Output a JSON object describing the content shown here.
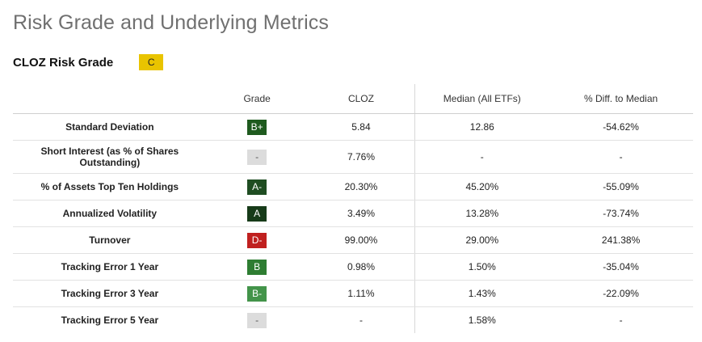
{
  "page": {
    "title": "Risk Grade and Underlying Metrics"
  },
  "risk_grade": {
    "label": "CLOZ Risk Grade",
    "value": "C",
    "color": "#e9c400"
  },
  "table": {
    "headers": {
      "metric": "",
      "grade": "Grade",
      "fund": "CLOZ",
      "median": "Median (All ETFs)",
      "diff": "% Diff. to Median"
    },
    "rows": [
      {
        "metric": "Standard Deviation",
        "grade": "B+",
        "grade_color": "#1e5a1e",
        "fund": "5.84",
        "median": "12.86",
        "diff": "-54.62%"
      },
      {
        "metric": "Short Interest (as % of Shares Outstanding)",
        "grade": "-",
        "grade_color": "#dcdcdc",
        "fund": "7.76%",
        "median": "-",
        "diff": "-"
      },
      {
        "metric": "% of Assets Top Ten Holdings",
        "grade": "A-",
        "grade_color": "#1f4d22",
        "fund": "20.30%",
        "median": "45.20%",
        "diff": "-55.09%"
      },
      {
        "metric": "Annualized Volatility",
        "grade": "A",
        "grade_color": "#173b19",
        "fund": "3.49%",
        "median": "13.28%",
        "diff": "-73.74%"
      },
      {
        "metric": "Turnover",
        "grade": "D-",
        "grade_color": "#c0201f",
        "fund": "99.00%",
        "median": "29.00%",
        "diff": "241.38%"
      },
      {
        "metric": "Tracking Error 1 Year",
        "grade": "B",
        "grade_color": "#2e7d32",
        "fund": "0.98%",
        "median": "1.50%",
        "diff": "-35.04%"
      },
      {
        "metric": "Tracking Error 3 Year",
        "grade": "B-",
        "grade_color": "#43944a",
        "fund": "1.11%",
        "median": "1.43%",
        "diff": "-22.09%"
      },
      {
        "metric": "Tracking Error 5 Year",
        "grade": "-",
        "grade_color": "#dcdcdc",
        "fund": "-",
        "median": "1.58%",
        "diff": "-"
      }
    ]
  }
}
